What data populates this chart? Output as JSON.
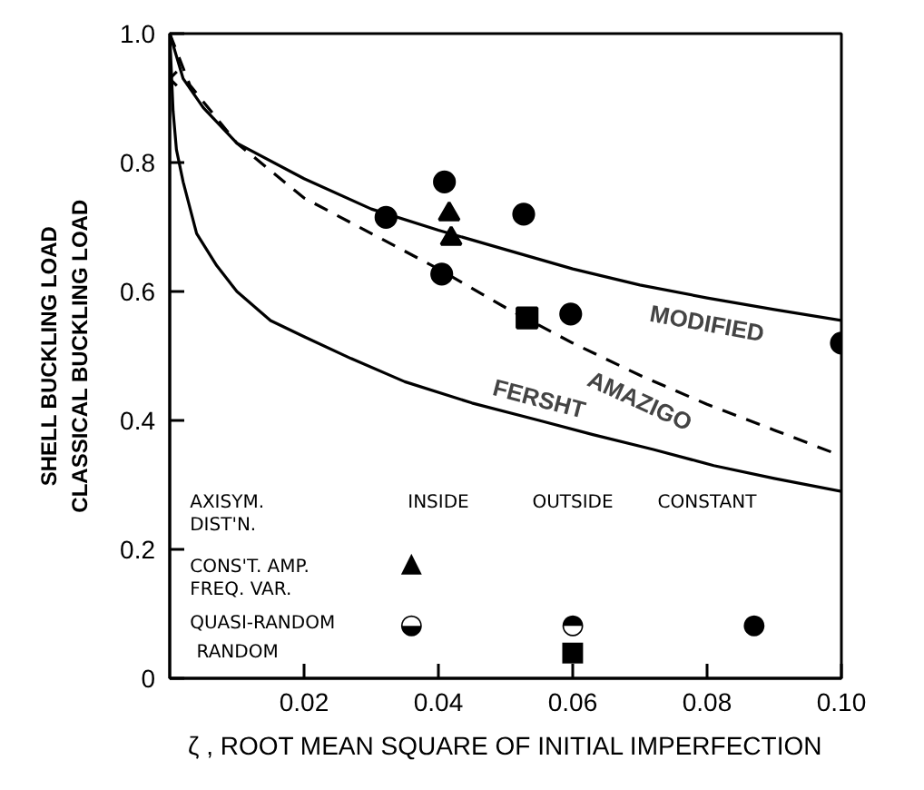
{
  "chart_data": {
    "type": "line",
    "xlabel": "ζ , ROOT MEAN SQUARE OF INITIAL IMPERFECTION",
    "ylabel": "SHELL BUCKLING LOAD\nCLASSICAL BUCKLING LOAD",
    "xlim": [
      0,
      0.1
    ],
    "ylim": [
      0,
      1.0
    ],
    "xticks": [
      0.02,
      0.04,
      0.06,
      0.08,
      {
        "value": 0.1,
        "label": "0.10"
      }
    ],
    "yticks": [
      0,
      0.2,
      0.4,
      0.6,
      0.8,
      {
        "value": 1.0,
        "label": "1.0"
      }
    ],
    "grid": false,
    "annotations": [
      "AXISYM.\nDIST'N.",
      "INSIDE",
      "OUTSIDE",
      "CONSTANT",
      "CONS'T. AMP.\nFREQ. VAR.",
      "QUASI-RANDOM",
      "RANDOM",
      "▲",
      "◒",
      "◓",
      "●",
      "■"
    ],
    "series": [
      {
        "name": "MODIFIED",
        "line_style": "solid",
        "color": "#000000",
        "x": [
          0,
          0.002,
          0.005,
          0.01,
          0.02,
          0.03,
          0.04,
          0.05,
          0.06,
          0.07,
          0.08,
          0.09,
          0.1
        ],
        "values": [
          1.0,
          0.93,
          0.885,
          0.83,
          0.775,
          0.728,
          0.695,
          0.665,
          0.635,
          0.61,
          0.59,
          0.572,
          0.555
        ]
      },
      {
        "name": "AMAZIGO",
        "line_style": "dashed",
        "color": "#000000",
        "x": [
          0,
          0.003,
          0.01,
          0.02,
          0.03,
          0.04,
          0.05,
          0.06,
          0.07,
          0.08,
          0.09,
          0.1
        ],
        "values": [
          1.0,
          0.92,
          0.83,
          0.745,
          0.69,
          0.635,
          0.575,
          0.52,
          0.47,
          0.425,
          0.385,
          0.345
        ]
      },
      {
        "name": "FERSHT",
        "line_style": "solid",
        "color": "#000000",
        "x": [
          0,
          0.0005,
          0.001,
          0.002,
          0.004,
          0.007,
          0.01,
          0.015,
          0.02,
          0.027,
          0.035,
          0.045,
          0.055,
          0.063,
          0.072,
          0.081,
          0.09,
          0.1
        ],
        "values": [
          1.0,
          0.88,
          0.82,
          0.77,
          0.69,
          0.64,
          0.6,
          0.555,
          0.53,
          0.496,
          0.46,
          0.427,
          0.4,
          0.378,
          0.355,
          0.33,
          0.31,
          0.29
        ]
      },
      {
        "type": "scatter",
        "marker": "cross",
        "color": "#000000",
        "x": [
          0
        ],
        "values": [
          0.93
        ]
      },
      {
        "type": "scatter",
        "marker": "triangle",
        "color": "#000000",
        "x": [
          0.0416,
          0.0419
        ],
        "values": [
          0.72,
          0.682
        ]
      },
      {
        "type": "scatter",
        "marker": "circle",
        "color": "#000000",
        "x": [
          0.0322,
          0.0405,
          0.0597
        ],
        "values": [
          0.715,
          0.627,
          0.565
        ]
      },
      {
        "type": "scatter",
        "marker": "circle",
        "color": "#000000",
        "x": [
          0.0409,
          0.0527
        ],
        "values": [
          0.77,
          0.72
        ]
      },
      {
        "type": "scatter",
        "marker": "circle",
        "color": "#000000",
        "x": [
          0.1
        ],
        "values": [
          0.52
        ]
      },
      {
        "type": "scatter",
        "marker": "square",
        "color": "#000000",
        "x": [
          0.0532
        ],
        "values": [
          0.559
        ]
      }
    ]
  }
}
